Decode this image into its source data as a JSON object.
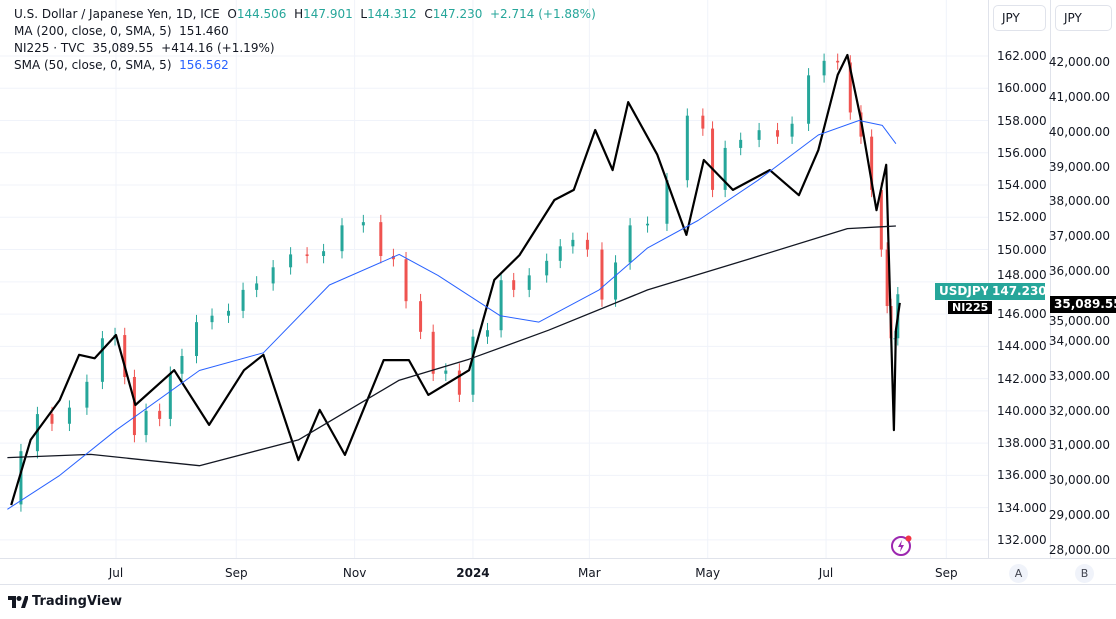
{
  "legend": {
    "title": "U.S. Dollar / Japanese Yen, 1D, ICE",
    "o_label": "O",
    "o": "144.506",
    "h_label": "H",
    "h": "147.901",
    "l_label": "L",
    "l": "144.312",
    "c_label": "C",
    "c": "147.230",
    "change": "+2.714 (+1.88%)",
    "ma200_label": "MA (200, close, 0, SMA, 5)",
    "ma200_value": "151.460",
    "ni225_label": "NI225 · TVC",
    "ni225_value": "35,089.55",
    "ni225_change": "+414.16 (+1.19%)",
    "sma50_label": "SMA (50, close, 0, SMA, 5)",
    "sma50_value": "156.562"
  },
  "axes": {
    "currency_a": "JPY",
    "currency_b": "JPY",
    "scale_a": "A",
    "scale_b": "B"
  },
  "tags": {
    "usdjpy_name": "USDJPY",
    "usdjpy_price": "147.230",
    "ni225_name": "NI225",
    "ni225_price": "35,089.55"
  },
  "footer": {
    "brand": "TradingView"
  },
  "colors": {
    "up": "#26a69a",
    "down": "#ef5350",
    "sma50": "#2962ff",
    "ma200": "#131722",
    "ni225": "#000000"
  },
  "chart_data": {
    "type": "candlestick+line",
    "x_tick_labels": [
      {
        "label": "Jul",
        "date": "2023-07-01"
      },
      {
        "label": "Sep",
        "date": "2023-09-01"
      },
      {
        "label": "Nov",
        "date": "2023-11-01"
      },
      {
        "label": "2024",
        "date": "2024-01-01",
        "year": true
      },
      {
        "label": "Mar",
        "date": "2024-03-01"
      },
      {
        "label": "May",
        "date": "2024-05-01"
      },
      {
        "label": "Jul",
        "date": "2024-07-01"
      },
      {
        "label": "Sep",
        "date": "2024-09-01"
      }
    ],
    "left_axis": {
      "range": [
        131,
        164
      ],
      "ticks": [
        "132.000",
        "134.000",
        "136.000",
        "138.000",
        "140.000",
        "142.000",
        "144.000",
        "146.000",
        "148.000",
        "150.000",
        "152.000",
        "154.000",
        "156.000",
        "158.000",
        "160.000",
        "162.000"
      ]
    },
    "right_axis": {
      "range": [
        27700,
        42200
      ],
      "ticks": [
        "28,000.00",
        "29,000.00",
        "30,000.00",
        "31,000.00",
        "32,000.00",
        "33,000.00",
        "34,000.00",
        "35,000.00",
        "36,000.00",
        "37,000.00",
        "38,000.00",
        "39,000.00",
        "40,000.00",
        "41,000.00",
        "42,000.00"
      ]
    },
    "grid": true,
    "series": [
      {
        "name": "USDJPY",
        "axis": "left",
        "kind": "candles",
        "points": [
          [
            "2023-05-08",
            134.2
          ],
          [
            "2023-05-18",
            137.5
          ],
          [
            "2023-05-25",
            139.8
          ],
          [
            "2023-06-02",
            139.2
          ],
          [
            "2023-06-12",
            140.2
          ],
          [
            "2023-06-20",
            141.8
          ],
          [
            "2023-06-28",
            144.5
          ],
          [
            "2023-07-03",
            144.7
          ],
          [
            "2023-07-08",
            142.1
          ],
          [
            "2023-07-13",
            138.5
          ],
          [
            "2023-07-20",
            140.0
          ],
          [
            "2023-07-27",
            139.5
          ],
          [
            "2023-07-31",
            142.3
          ],
          [
            "2023-08-08",
            143.4
          ],
          [
            "2023-08-15",
            145.5
          ],
          [
            "2023-08-24",
            145.9
          ],
          [
            "2023-09-01",
            146.2
          ],
          [
            "2023-09-08",
            147.5
          ],
          [
            "2023-09-15",
            147.9
          ],
          [
            "2023-09-25",
            148.9
          ],
          [
            "2023-10-03",
            149.7
          ],
          [
            "2023-10-12",
            149.6
          ],
          [
            "2023-10-20",
            149.9
          ],
          [
            "2023-10-31",
            151.5
          ],
          [
            "2023-11-11",
            151.7
          ],
          [
            "2023-11-18",
            149.6
          ],
          [
            "2023-11-24",
            149.4
          ],
          [
            "2023-12-01",
            146.8
          ],
          [
            "2023-12-09",
            144.9
          ],
          [
            "2023-12-14",
            142.3
          ],
          [
            "2023-12-22",
            142.5
          ],
          [
            "2023-12-28",
            141.0
          ],
          [
            "2024-01-05",
            144.6
          ],
          [
            "2024-01-12",
            145.0
          ],
          [
            "2024-01-19",
            148.1
          ],
          [
            "2024-01-25",
            147.5
          ],
          [
            "2024-02-04",
            148.4
          ],
          [
            "2024-02-12",
            149.3
          ],
          [
            "2024-02-18",
            150.2
          ],
          [
            "2024-02-25",
            150.6
          ],
          [
            "2024-03-04",
            150.0
          ],
          [
            "2024-03-11",
            146.9
          ],
          [
            "2024-03-18",
            149.2
          ],
          [
            "2024-03-26",
            151.5
          ],
          [
            "2024-04-05",
            151.6
          ],
          [
            "2024-04-15",
            154.3
          ],
          [
            "2024-04-26",
            158.3
          ],
          [
            "2024-05-01",
            157.5
          ],
          [
            "2024-05-06",
            153.7
          ],
          [
            "2024-05-14",
            156.3
          ],
          [
            "2024-05-22",
            156.8
          ],
          [
            "2024-06-02",
            157.4
          ],
          [
            "2024-06-10",
            157.0
          ],
          [
            "2024-06-17",
            157.8
          ],
          [
            "2024-06-27",
            160.8
          ],
          [
            "2024-07-03",
            161.7
          ],
          [
            "2024-07-11",
            161.6
          ],
          [
            "2024-07-16",
            158.5
          ],
          [
            "2024-07-22",
            157.0
          ],
          [
            "2024-07-27",
            153.7
          ],
          [
            "2024-08-01",
            150.0
          ],
          [
            "2024-08-02",
            146.5
          ],
          [
            "2024-08-05",
            144.5
          ],
          [
            "2024-08-06",
            144.5
          ],
          [
            "2024-08-08",
            147.23
          ]
        ]
      },
      {
        "name": "NI225",
        "axis": "right",
        "kind": "line",
        "points": [
          [
            "2023-05-08",
            29290
          ],
          [
            "2023-05-18",
            31160
          ],
          [
            "2023-06-02",
            32300
          ],
          [
            "2023-06-12",
            33600
          ],
          [
            "2023-06-20",
            33500
          ],
          [
            "2023-07-01",
            34170
          ],
          [
            "2023-07-11",
            32160
          ],
          [
            "2023-07-31",
            33160
          ],
          [
            "2023-08-18",
            31590
          ],
          [
            "2023-09-05",
            33160
          ],
          [
            "2023-09-15",
            33600
          ],
          [
            "2023-10-03",
            30580
          ],
          [
            "2023-10-14",
            32020
          ],
          [
            "2023-10-27",
            30730
          ],
          [
            "2023-11-16",
            33450
          ],
          [
            "2023-11-29",
            33450
          ],
          [
            "2023-12-09",
            32450
          ],
          [
            "2023-12-30",
            33160
          ],
          [
            "2024-01-12",
            35750
          ],
          [
            "2024-01-25",
            36460
          ],
          [
            "2024-02-12",
            38040
          ],
          [
            "2024-02-22",
            38330
          ],
          [
            "2024-03-04",
            40050
          ],
          [
            "2024-03-13",
            38900
          ],
          [
            "2024-03-21",
            40850
          ],
          [
            "2024-04-05",
            39340
          ],
          [
            "2024-04-20",
            37040
          ],
          [
            "2024-04-29",
            39190
          ],
          [
            "2024-05-14",
            38330
          ],
          [
            "2024-06-02",
            38900
          ],
          [
            "2024-06-17",
            38180
          ],
          [
            "2024-06-27",
            39470
          ],
          [
            "2024-07-07",
            41630
          ],
          [
            "2024-07-12",
            42200
          ],
          [
            "2024-07-19",
            40340
          ],
          [
            "2024-07-27",
            37750
          ],
          [
            "2024-08-01",
            39050
          ],
          [
            "2024-08-05",
            31440
          ],
          [
            "2024-08-06",
            34310
          ],
          [
            "2024-08-08",
            35090
          ]
        ]
      },
      {
        "name": "MA (200, close, 0, SMA, 5)",
        "axis": "left",
        "kind": "line",
        "points": [
          [
            "2023-05-06",
            137.1
          ],
          [
            "2023-06-18",
            137.3
          ],
          [
            "2023-08-13",
            136.6
          ],
          [
            "2023-10-03",
            138.2
          ],
          [
            "2023-11-24",
            141.9
          ],
          [
            "2023-12-30",
            143.2
          ],
          [
            "2024-02-09",
            145.0
          ],
          [
            "2024-03-31",
            147.5
          ],
          [
            "2024-05-22",
            149.4
          ],
          [
            "2024-07-12",
            151.3
          ],
          [
            "2024-08-06",
            151.46
          ]
        ]
      },
      {
        "name": "SMA (50, close, 0, SMA, 5)",
        "axis": "left",
        "kind": "line",
        "points": [
          [
            "2023-05-06",
            133.9
          ],
          [
            "2023-06-02",
            136.0
          ],
          [
            "2023-07-01",
            138.8
          ],
          [
            "2023-08-13",
            142.5
          ],
          [
            "2023-09-15",
            143.6
          ],
          [
            "2023-10-19",
            147.8
          ],
          [
            "2023-11-24",
            149.7
          ],
          [
            "2023-12-14",
            148.4
          ],
          [
            "2024-01-15",
            145.9
          ],
          [
            "2024-02-04",
            145.5
          ],
          [
            "2024-03-06",
            147.5
          ],
          [
            "2024-03-31",
            150.1
          ],
          [
            "2024-04-26",
            151.8
          ],
          [
            "2024-05-27",
            154.3
          ],
          [
            "2024-06-27",
            157.1
          ],
          [
            "2024-07-18",
            158.0
          ],
          [
            "2024-07-30",
            157.7
          ],
          [
            "2024-08-06",
            156.56
          ]
        ]
      }
    ]
  }
}
